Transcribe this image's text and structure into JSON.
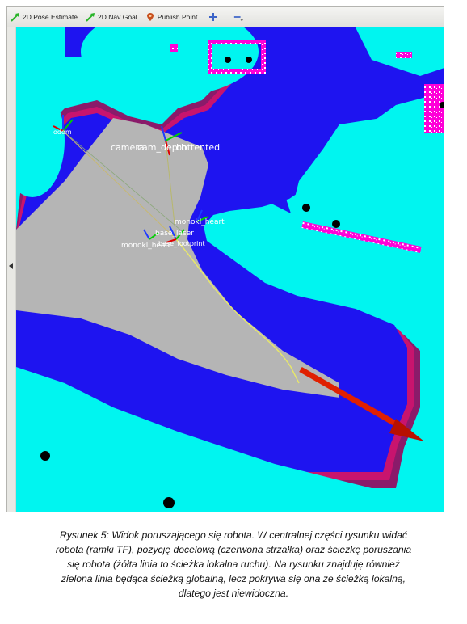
{
  "toolbar": {
    "pose_estimate_label": "2D Pose Estimate",
    "nav_goal_label": "2D Nav Goal",
    "publish_point_label": "Publish Point",
    "zoom_in_icon": "plus-icon",
    "zoom_out_icon": "minus-icon"
  },
  "map_labels": {
    "odom": "odom",
    "camera_top": "camera",
    "camera_center": "cam_depth",
    "camera_right": "bottented",
    "monokl_heart": "monokl_heart",
    "base_laser": "base_laser",
    "monokl_head": "monokl_head",
    "base_footprint": "base_footprint"
  },
  "colors": {
    "free_space": "#00f5f0",
    "inflation": "#1e14f0",
    "obstacle_edge": "#ff00d8",
    "unknown": "#b5b5b5",
    "goal_arrow": "#e02000",
    "local_path": "#e8e868"
  },
  "caption": {
    "line1": "Rysunek 5: Widok poruszającego się robota. W centralnej części rysunku widać",
    "line2": "robota (ramki TF), pozycję docelową (czerwona strzałka) oraz ścieżkę poruszania",
    "line3": "się robota (żółta linia to ścieżka lokalna ruchu). Na rysunku znajduję również",
    "line4": "zielona linia będąca ścieżką globalną, lecz pokrywa się ona ze ścieżką lokalną,",
    "line5": "dlatego jest niewidoczna."
  }
}
